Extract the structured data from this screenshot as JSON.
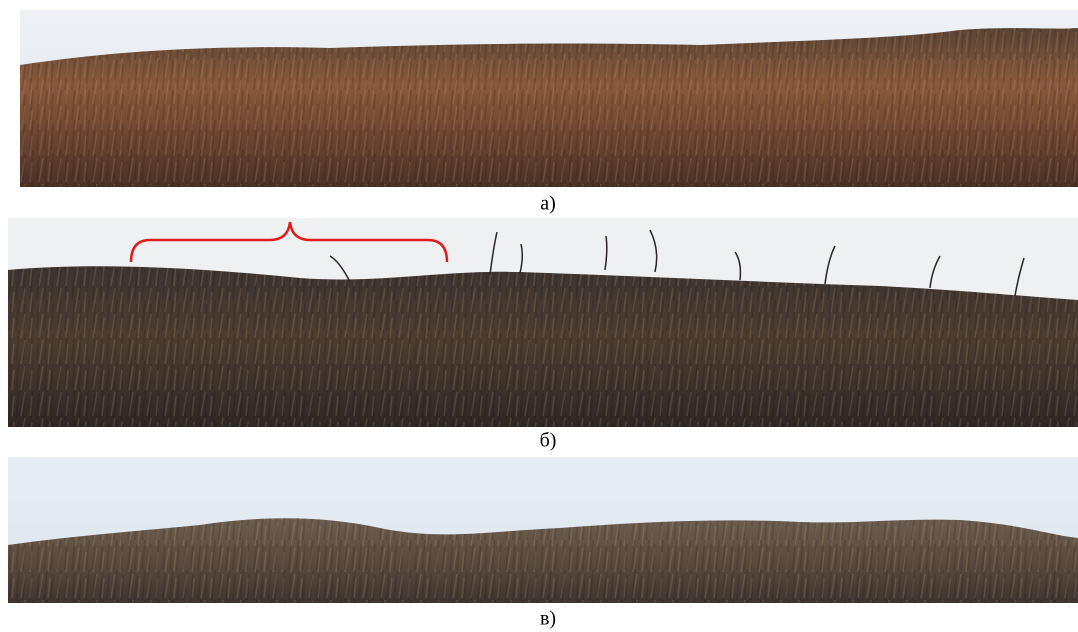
{
  "panels": [
    {
      "caption": "а)"
    },
    {
      "caption": "б)"
    },
    {
      "caption": "в)"
    }
  ]
}
